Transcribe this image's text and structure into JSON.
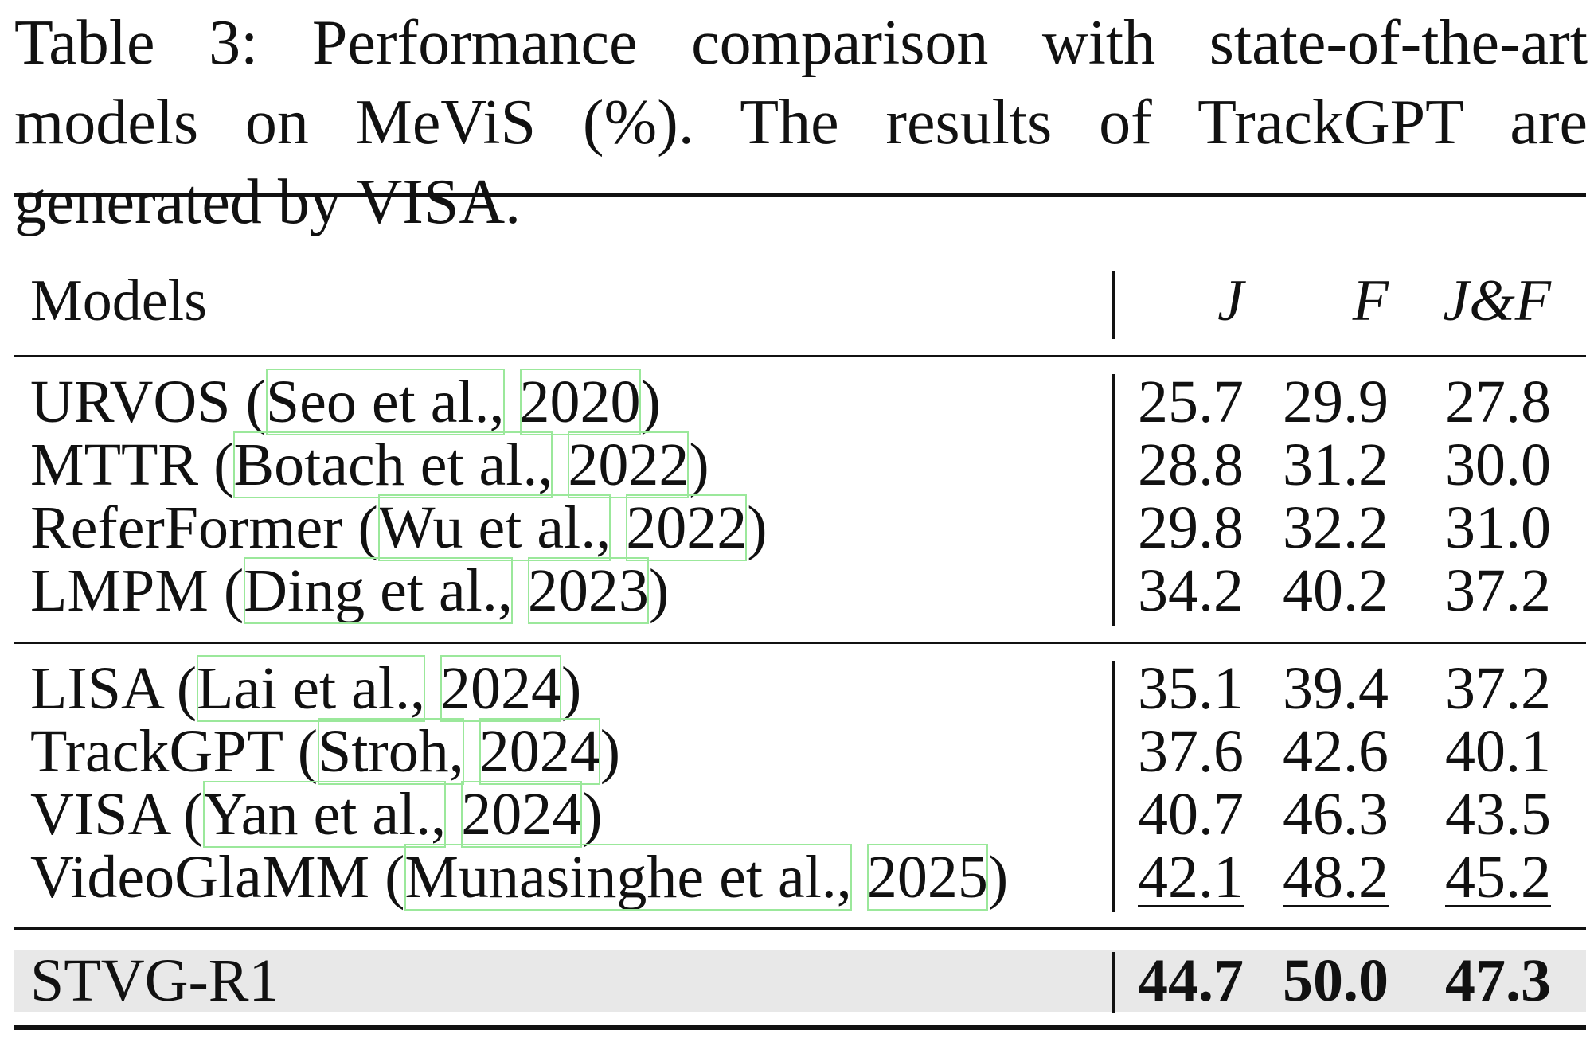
{
  "caption": "Table 3: Performance comparison with state-of-the-art models on MeViS (%). The results of TrackGPT are generated by VISA.",
  "columns": {
    "models": "Models",
    "j": "J",
    "f": "F",
    "jf": "J&F"
  },
  "groups": [
    {
      "rows": [
        {
          "model": "URVOS",
          "cite_author": "Seo et al.,",
          "cite_year": "2020",
          "j": "25.7",
          "f": "29.9",
          "jf": "27.8"
        },
        {
          "model": "MTTR",
          "cite_author": "Botach et al.,",
          "cite_year": "2022",
          "j": "28.8",
          "f": "31.2",
          "jf": "30.0"
        },
        {
          "model": "ReferFormer",
          "cite_author": "Wu et al.,",
          "cite_year": "2022",
          "j": "29.8",
          "f": "32.2",
          "jf": "31.0"
        },
        {
          "model": "LMPM",
          "cite_author": "Ding et al.,",
          "cite_year": "2023",
          "j": "34.2",
          "f": "40.2",
          "jf": "37.2"
        }
      ]
    },
    {
      "rows": [
        {
          "model": "LISA",
          "cite_author": "Lai et al.,",
          "cite_year": "2024",
          "j": "35.1",
          "f": "39.4",
          "jf": "37.2"
        },
        {
          "model": "TrackGPT",
          "cite_author": "Stroh,",
          "cite_year": "2024",
          "j": "37.6",
          "f": "42.6",
          "jf": "40.1"
        },
        {
          "model": "VISA",
          "cite_author": "Yan et al.,",
          "cite_year": "2024",
          "j": "40.7",
          "f": "46.3",
          "jf": "43.5"
        },
        {
          "model": "VideoGlaMM",
          "cite_author": "Munasinghe et al.,",
          "cite_year": "2025",
          "j": "42.1",
          "f": "48.2",
          "jf": "45.2"
        }
      ]
    },
    {
      "rows": [
        {
          "model": "STVG-R1",
          "j": "44.7",
          "f": "50.0",
          "jf": "47.3"
        }
      ]
    }
  ],
  "styles": {
    "highlight_row_color": "#e8e8e8",
    "citation_box_color": "#9be89b",
    "second_best_row": "VideoGlaMM",
    "best_row": "STVG-R1"
  }
}
